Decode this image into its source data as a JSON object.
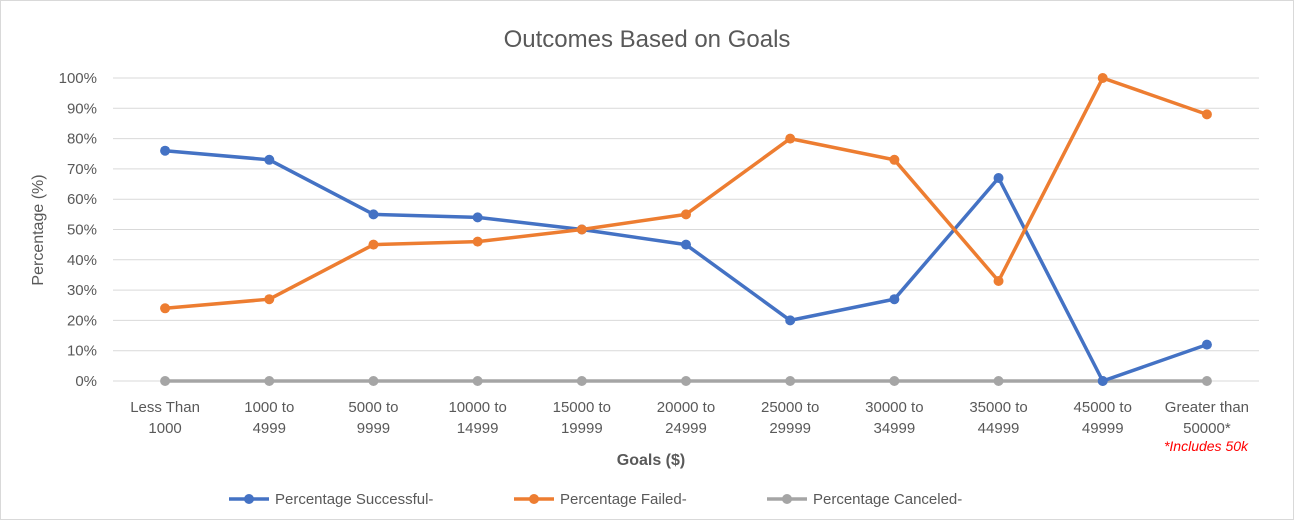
{
  "chart_data": {
    "type": "line",
    "title": "Outcomes Based on Goals",
    "xlabel": "Goals ($)",
    "ylabel": "Percentage (%)",
    "ylim": [
      0,
      100
    ],
    "yticks": [
      "0%",
      "10%",
      "20%",
      "30%",
      "40%",
      "50%",
      "60%",
      "70%",
      "80%",
      "90%",
      "100%"
    ],
    "categories": [
      [
        "Less Than",
        "1000"
      ],
      [
        "1000 to",
        "4999"
      ],
      [
        "5000 to",
        "9999"
      ],
      [
        "10000 to",
        "14999"
      ],
      [
        "15000 to",
        "19999"
      ],
      [
        "20000 to",
        "24999"
      ],
      [
        "25000 to",
        "29999"
      ],
      [
        "30000 to",
        "34999"
      ],
      [
        "35000 to",
        "44999"
      ],
      [
        "45000 to",
        "49999"
      ],
      [
        "Greater than",
        "50000*"
      ]
    ],
    "series": [
      {
        "name": "Percentage Successful-",
        "color": "#4472c4",
        "values": [
          76,
          73,
          55,
          54,
          50,
          45,
          20,
          27,
          67,
          0,
          12
        ]
      },
      {
        "name": "Percentage Failed-",
        "color": "#ed7d31",
        "values": [
          24,
          27,
          45,
          46,
          50,
          55,
          80,
          73,
          33,
          100,
          88
        ]
      },
      {
        "name": "Percentage Canceled-",
        "color": "#a5a5a5",
        "values": [
          0,
          0,
          0,
          0,
          0,
          0,
          0,
          0,
          0,
          0,
          0
        ]
      }
    ],
    "grid": true,
    "legend_position": "bottom",
    "annotation": "*Includes 50k"
  }
}
